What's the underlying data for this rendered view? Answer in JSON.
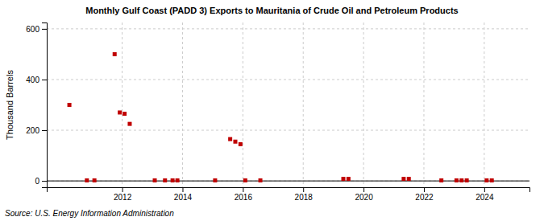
{
  "chart_data": {
    "type": "scatter",
    "title": "Monthly Gulf Coast (PADD 3) Exports to Mauritania of Crude Oil and Petroleum Products",
    "ylabel": "Thousand Barrels",
    "annotations": [
      "Source: U.S. Energy Information Administration"
    ],
    "color": "#c00000",
    "marker": "square",
    "grid": true,
    "xlim": [
      2009.5,
      2025.5
    ],
    "ylim": [
      -25,
      625
    ],
    "xticks": [
      2012,
      2014,
      2016,
      2018,
      2020,
      2022,
      2024
    ],
    "yticks": [
      0,
      200,
      400,
      600
    ],
    "x": [
      2010.25,
      2010.83,
      2011.08,
      2011.75,
      2011.92,
      2012.08,
      2012.25,
      2013.08,
      2013.42,
      2013.67,
      2013.83,
      2015.08,
      2015.58,
      2015.75,
      2015.92,
      2016.08,
      2016.58,
      2019.33,
      2019.5,
      2021.33,
      2021.5,
      2022.58,
      2023.08,
      2023.25,
      2023.42,
      2024.08,
      2024.25
    ],
    "values": [
      300,
      2,
      2,
      500,
      270,
      265,
      225,
      2,
      2,
      2,
      2,
      2,
      165,
      155,
      145,
      2,
      2,
      8,
      8,
      8,
      8,
      2,
      2,
      2,
      2,
      2,
      2
    ]
  }
}
